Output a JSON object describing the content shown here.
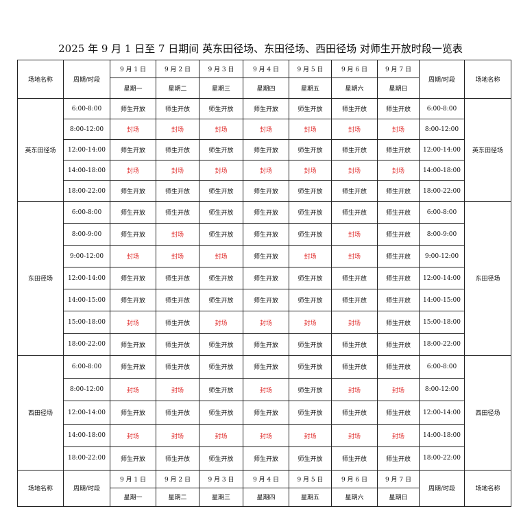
{
  "title": "2025 年 9 月 1 日至 7 日期间 英东田径场、东田径场、西田径场 对师生开放时段一览表",
  "header": {
    "venue_label": "场地名称",
    "period_label": "周期/时段",
    "dates": [
      "9 月 1 日",
      "9 月 2 日",
      "9 月 3 日",
      "9 月 4 日",
      "9 月 5 日",
      "9 月 6 日",
      "9 月 7 日"
    ],
    "weekdays": [
      "星期一",
      "星期二",
      "星期三",
      "星期四",
      "星期五",
      "星期六",
      "星期日"
    ]
  },
  "status_colors": {
    "open": "#111111",
    "closed": "#e0302f"
  },
  "status_labels": {
    "open": "师生开放",
    "closed": "封场"
  },
  "venues": [
    {
      "name": "英东田径场",
      "slots": [
        {
          "time": "6:00-8:00",
          "status": [
            "师生开放",
            "师生开放",
            "师生开放",
            "师生开放",
            "师生开放",
            "师生开放",
            "师生开放"
          ]
        },
        {
          "time": "8:00-12:00",
          "status": [
            "封场",
            "封场",
            "封场",
            "封场",
            "封场",
            "封场",
            "封场"
          ]
        },
        {
          "time": "12:00-14:00",
          "status": [
            "师生开放",
            "师生开放",
            "师生开放",
            "师生开放",
            "师生开放",
            "师生开放",
            "师生开放"
          ]
        },
        {
          "time": "14:00-18:00",
          "status": [
            "封场",
            "封场",
            "封场",
            "封场",
            "封场",
            "封场",
            "封场"
          ]
        },
        {
          "time": "18:00-22:00",
          "status": [
            "师生开放",
            "师生开放",
            "师生开放",
            "师生开放",
            "师生开放",
            "师生开放",
            "师生开放"
          ]
        }
      ]
    },
    {
      "name": "东田径场",
      "slots": [
        {
          "time": "6:00-8:00",
          "status": [
            "师生开放",
            "师生开放",
            "师生开放",
            "师生开放",
            "师生开放",
            "师生开放",
            "师生开放"
          ]
        },
        {
          "time": "8:00-9:00",
          "status": [
            "师生开放",
            "封场",
            "师生开放",
            "师生开放",
            "师生开放",
            "封场",
            "师生开放"
          ]
        },
        {
          "time": "9:00-12:00",
          "status": [
            "封场",
            "封场",
            "封场",
            "师生开放",
            "封场",
            "封场",
            "师生开放"
          ]
        },
        {
          "time": "12:00-14:00",
          "status": [
            "师生开放",
            "师生开放",
            "师生开放",
            "师生开放",
            "师生开放",
            "师生开放",
            "师生开放"
          ]
        },
        {
          "time": "14:00-15:00",
          "status": [
            "师生开放",
            "师生开放",
            "师生开放",
            "师生开放",
            "师生开放",
            "师生开放",
            "师生开放"
          ]
        },
        {
          "time": "15:00-18:00",
          "status": [
            "封场",
            "师生开放",
            "封场",
            "封场",
            "封场",
            "封场",
            "师生开放"
          ]
        },
        {
          "time": "18:00-22:00",
          "status": [
            "师生开放",
            "师生开放",
            "师生开放",
            "师生开放",
            "师生开放",
            "师生开放",
            "师生开放"
          ]
        }
      ]
    },
    {
      "name": "西田径场",
      "slots": [
        {
          "time": "6:00-8:00",
          "status": [
            "师生开放",
            "师生开放",
            "师生开放",
            "师生开放",
            "师生开放",
            "师生开放",
            "师生开放"
          ]
        },
        {
          "time": "8:00-12:00",
          "status": [
            "封场",
            "封场",
            "师生开放",
            "封场",
            "师生开放",
            "封场",
            "封场"
          ]
        },
        {
          "time": "12:00-14:00",
          "status": [
            "师生开放",
            "师生开放",
            "师生开放",
            "师生开放",
            "师生开放",
            "师生开放",
            "师生开放"
          ]
        },
        {
          "time": "14:00-18:00",
          "status": [
            "封场",
            "封场",
            "封场",
            "封场",
            "封场",
            "封场",
            "封场"
          ]
        },
        {
          "time": "18:00-22:00",
          "status": [
            "师生开放",
            "师生开放",
            "师生开放",
            "师生开放",
            "师生开放",
            "师生开放",
            "师生开放"
          ]
        }
      ]
    }
  ]
}
